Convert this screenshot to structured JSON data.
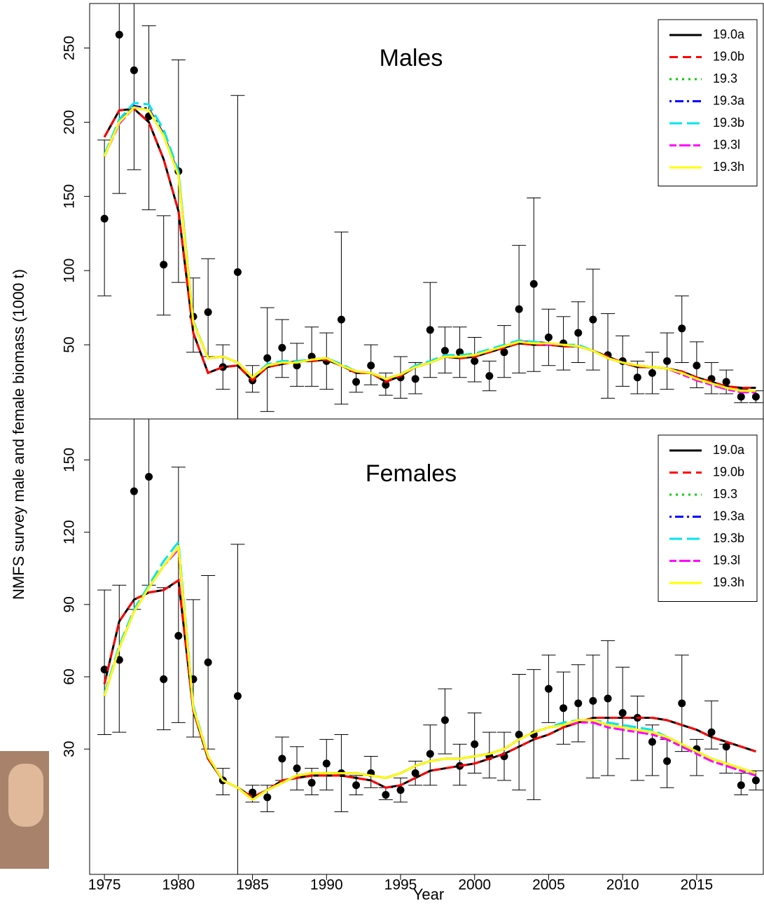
{
  "chart_data": [
    {
      "type": "line",
      "title": "Males",
      "ylabel": "NMFS survey male and female biomass (1000 t)",
      "x": [
        1975,
        1976,
        1977,
        1978,
        1979,
        1980,
        1981,
        1982,
        1983,
        1984,
        1985,
        1986,
        1987,
        1988,
        1989,
        1990,
        1991,
        1992,
        1993,
        1994,
        1995,
        1996,
        1997,
        1998,
        1999,
        2000,
        2001,
        2002,
        2003,
        2004,
        2005,
        2006,
        2007,
        2008,
        2009,
        2010,
        2011,
        2012,
        2013,
        2014,
        2015,
        2016,
        2017,
        2018,
        2019
      ],
      "xlim": [
        1974,
        2019.5
      ],
      "ylim": [
        0,
        280
      ],
      "yticks": [
        50,
        100,
        150,
        200,
        250
      ],
      "legend": "top-right",
      "observed": {
        "values": [
          135,
          259,
          235,
          204,
          104,
          167,
          69,
          72,
          35,
          99,
          26,
          41,
          48,
          36,
          42,
          39,
          67,
          25,
          36,
          23,
          28,
          27,
          60,
          46,
          45,
          39,
          29,
          45,
          74,
          91,
          55,
          51,
          58,
          67,
          43,
          39,
          28,
          31,
          39,
          61,
          36,
          27,
          25,
          15,
          15
        ],
        "lower": [
          83,
          152,
          168,
          141,
          70,
          92,
          45,
          42,
          20,
          0,
          18,
          5,
          28,
          22,
          22,
          20,
          10,
          18,
          23,
          16,
          14,
          17,
          28,
          31,
          28,
          25,
          19,
          28,
          31,
          32,
          36,
          33,
          38,
          33,
          14,
          22,
          17,
          17,
          20,
          38,
          21,
          17,
          17,
          11,
          11
        ],
        "upper": [
          188,
          300,
          320,
          265,
          137,
          242,
          95,
          108,
          50,
          218,
          36,
          75,
          67,
          51,
          62,
          58,
          126,
          32,
          50,
          31,
          42,
          38,
          92,
          62,
          62,
          55,
          39,
          63,
          117,
          149,
          74,
          69,
          79,
          101,
          71,
          56,
          39,
          45,
          58,
          83,
          52,
          38,
          33,
          20,
          19
        ]
      },
      "series": [
        {
          "name": "19.0a",
          "color": "#000000",
          "dash": "solid",
          "values": [
            190,
            208,
            209,
            200,
            175,
            140,
            58,
            31,
            35,
            36,
            26,
            35,
            37,
            39,
            39,
            40,
            36,
            31,
            31,
            25,
            29,
            35,
            38,
            42,
            41,
            42,
            45,
            48,
            51,
            50,
            50,
            49,
            49,
            46,
            42,
            38,
            35,
            35,
            34,
            32,
            28,
            25,
            22,
            21,
            21
          ]
        },
        {
          "name": "19.0b",
          "color": "#ff0000",
          "dash": "dashed",
          "values": [
            190,
            208,
            209,
            200,
            175,
            140,
            58,
            31,
            35,
            36,
            26,
            35,
            37,
            39,
            39,
            40,
            36,
            31,
            31,
            25,
            29,
            35,
            38,
            42,
            41,
            42,
            45,
            48,
            51,
            50,
            50,
            49,
            49,
            46,
            42,
            38,
            35,
            35,
            34,
            32,
            28,
            25,
            22,
            21,
            21
          ]
        },
        {
          "name": "19.3",
          "color": "#00cc00",
          "dash": "dotted",
          "values": [
            177,
            200,
            211,
            209,
            192,
            165,
            65,
            41,
            42,
            38,
            28,
            36,
            38,
            38,
            40,
            41,
            36,
            32,
            31,
            27,
            30,
            35,
            38,
            42,
            42,
            43,
            46,
            49,
            52,
            52,
            51,
            50,
            49,
            46,
            41,
            38,
            36,
            35,
            34,
            31,
            27,
            24,
            21,
            19,
            19
          ]
        },
        {
          "name": "19.3a",
          "color": "#0000ff",
          "dash": "dotdash",
          "values": [
            177,
            200,
            211,
            209,
            192,
            165,
            65,
            41,
            42,
            38,
            28,
            36,
            38,
            38,
            40,
            41,
            36,
            32,
            31,
            27,
            30,
            35,
            38,
            42,
            42,
            43,
            46,
            49,
            52,
            52,
            51,
            50,
            49,
            46,
            41,
            38,
            36,
            35,
            34,
            31,
            27,
            24,
            21,
            19,
            19
          ]
        },
        {
          "name": "19.3b",
          "color": "#00e5ee",
          "dash": "longdash",
          "values": [
            178,
            202,
            213,
            212,
            195,
            167,
            66,
            41,
            42,
            38,
            28,
            37,
            39,
            39,
            40,
            41,
            37,
            32,
            31,
            27,
            30,
            36,
            39,
            43,
            43,
            44,
            47,
            50,
            53,
            52,
            51,
            50,
            50,
            46,
            41,
            38,
            36,
            35,
            34,
            31,
            27,
            24,
            21,
            19,
            19
          ]
        },
        {
          "name": "19.3l",
          "color": "#ff00ff",
          "dash": "twodash",
          "values": [
            177,
            199,
            210,
            208,
            191,
            164,
            65,
            41,
            42,
            38,
            28,
            36,
            38,
            38,
            40,
            41,
            36,
            32,
            31,
            27,
            30,
            35,
            38,
            42,
            42,
            43,
            46,
            49,
            52,
            51,
            50,
            50,
            49,
            46,
            41,
            38,
            36,
            35,
            34,
            30,
            26,
            23,
            20,
            18,
            18
          ]
        },
        {
          "name": "19.3h",
          "color": "#ffff00",
          "dash": "solid",
          "values": [
            177,
            200,
            210,
            208,
            191,
            164,
            65,
            41,
            42,
            38,
            28,
            36,
            38,
            38,
            40,
            41,
            36,
            32,
            31,
            27,
            30,
            35,
            38,
            42,
            42,
            43,
            46,
            49,
            52,
            51,
            51,
            50,
            49,
            46,
            41,
            38,
            36,
            35,
            34,
            31,
            27,
            24,
            21,
            19,
            19
          ]
        }
      ]
    },
    {
      "type": "line",
      "title": "Females",
      "xlabel": "Year",
      "x": [
        1975,
        1976,
        1977,
        1978,
        1979,
        1980,
        1981,
        1982,
        1983,
        1984,
        1985,
        1986,
        1987,
        1988,
        1989,
        1990,
        1991,
        1992,
        1993,
        1994,
        1995,
        1996,
        1997,
        1998,
        1999,
        2000,
        2001,
        2002,
        2003,
        2004,
        2005,
        2006,
        2007,
        2008,
        2009,
        2010,
        2011,
        2012,
        2013,
        2014,
        2015,
        2016,
        2017,
        2018,
        2019
      ],
      "xlim": [
        1974,
        2019.5
      ],
      "xticks": [
        1975,
        1980,
        1985,
        1990,
        1995,
        2000,
        2005,
        2010,
        2015
      ],
      "ylim": [
        -22,
        167
      ],
      "yticks": [
        30,
        60,
        90,
        120,
        150
      ],
      "legend": "top-right",
      "observed": {
        "values": [
          63,
          67,
          137,
          143,
          59,
          77,
          59,
          66,
          17,
          52,
          12,
          10,
          26,
          22,
          16,
          24,
          20,
          15,
          20,
          11,
          13,
          20,
          28,
          42,
          23,
          32,
          27,
          27,
          36,
          36,
          55,
          47,
          49,
          50,
          51,
          45,
          43,
          33,
          25,
          49,
          30,
          37,
          31,
          15,
          17
        ],
        "lower": [
          36,
          37,
          88,
          98,
          38,
          41,
          35,
          30,
          11,
          -22,
          8,
          4,
          17,
          13,
          11,
          13,
          4,
          11,
          14,
          9,
          8,
          15,
          15,
          28,
          15,
          20,
          18,
          17,
          13,
          9,
          41,
          32,
          33,
          18,
          19,
          26,
          17,
          19,
          14,
          29,
          19,
          30,
          20,
          11,
          13
        ],
        "upper": [
          96,
          98,
          190,
          200,
          97,
          147,
          92,
          102,
          22,
          115,
          15,
          15,
          35,
          31,
          22,
          34,
          36,
          19,
          27,
          14,
          18,
          25,
          40,
          55,
          32,
          45,
          37,
          37,
          61,
          63,
          69,
          62,
          65,
          69,
          75,
          64,
          52,
          40,
          34,
          69,
          34,
          50,
          32,
          20,
          21
        ]
      },
      "series": [
        {
          "name": "19.0a",
          "color": "#000000",
          "dash": "solid",
          "values": [
            57,
            83,
            92,
            95,
            96,
            100,
            46,
            26,
            17,
            14,
            10,
            13,
            17,
            18,
            19,
            19,
            19,
            18,
            17,
            14,
            15,
            18,
            21,
            22,
            23,
            24,
            26,
            28,
            31,
            34,
            36,
            39,
            41,
            43,
            43,
            43,
            43,
            43,
            42,
            40,
            38,
            35,
            33,
            31,
            29
          ]
        },
        {
          "name": "19.0b",
          "color": "#ff0000",
          "dash": "dashed",
          "values": [
            57,
            83,
            92,
            95,
            96,
            100,
            46,
            26,
            17,
            14,
            10,
            13,
            17,
            18,
            19,
            19,
            19,
            18,
            17,
            14,
            15,
            18,
            21,
            22,
            23,
            24,
            26,
            28,
            31,
            34,
            36,
            39,
            41,
            43,
            43,
            43,
            43,
            43,
            42,
            40,
            38,
            35,
            33,
            31,
            29
          ]
        },
        {
          "name": "19.3",
          "color": "#00cc00",
          "dash": "dotted",
          "values": [
            52,
            72,
            87,
            97,
            106,
            114,
            47,
            27,
            17,
            14,
            9,
            13,
            16,
            19,
            20,
            20,
            20,
            20,
            19,
            18,
            20,
            23,
            25,
            26,
            26,
            27,
            28,
            30,
            34,
            37,
            39,
            40,
            42,
            42,
            40,
            39,
            38,
            37,
            35,
            32,
            29,
            26,
            24,
            22,
            20
          ]
        },
        {
          "name": "19.3a",
          "color": "#0000ff",
          "dash": "dotdash",
          "values": [
            52,
            72,
            87,
            97,
            106,
            114,
            47,
            27,
            17,
            14,
            9,
            13,
            16,
            19,
            20,
            20,
            20,
            20,
            19,
            18,
            20,
            23,
            25,
            26,
            26,
            27,
            28,
            30,
            34,
            37,
            39,
            40,
            42,
            42,
            40,
            39,
            38,
            37,
            35,
            32,
            29,
            26,
            24,
            22,
            20
          ]
        },
        {
          "name": "19.3b",
          "color": "#00e5ee",
          "dash": "longdash",
          "values": [
            53,
            73,
            88,
            98,
            108,
            116,
            48,
            27,
            17,
            14,
            9,
            13,
            16,
            19,
            20,
            20,
            20,
            20,
            19,
            18,
            20,
            23,
            25,
            26,
            26,
            27,
            28,
            30,
            34,
            37,
            39,
            41,
            42,
            42,
            41,
            40,
            39,
            38,
            35,
            32,
            29,
            26,
            24,
            22,
            20
          ]
        },
        {
          "name": "19.3l",
          "color": "#ff00ff",
          "dash": "twodash",
          "values": [
            52,
            72,
            87,
            97,
            106,
            113,
            47,
            27,
            17,
            14,
            9,
            13,
            16,
            19,
            20,
            20,
            20,
            20,
            19,
            18,
            20,
            23,
            25,
            26,
            26,
            27,
            28,
            30,
            34,
            37,
            39,
            40,
            41,
            41,
            39,
            38,
            37,
            36,
            34,
            31,
            28,
            25,
            23,
            21,
            19
          ]
        },
        {
          "name": "19.3h",
          "color": "#ffff00",
          "dash": "solid",
          "values": [
            52,
            72,
            87,
            97,
            106,
            114,
            47,
            27,
            17,
            14,
            9,
            13,
            16,
            19,
            20,
            20,
            20,
            20,
            19,
            18,
            20,
            23,
            25,
            26,
            26,
            27,
            28,
            30,
            34,
            37,
            39,
            40,
            42,
            42,
            40,
            39,
            38,
            37,
            35,
            32,
            29,
            26,
            24,
            22,
            20
          ]
        }
      ]
    }
  ]
}
